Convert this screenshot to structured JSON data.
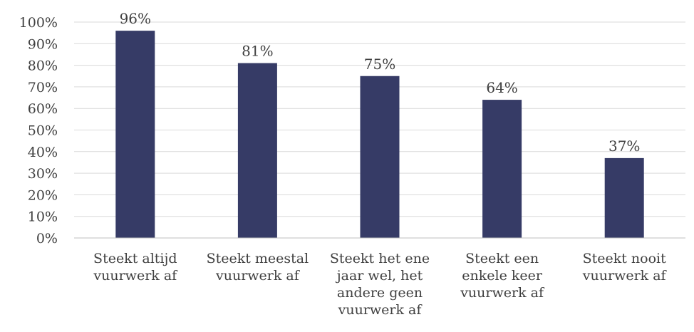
{
  "chart_data": {
    "type": "bar",
    "title": "",
    "xlabel": "",
    "ylabel": "",
    "ylim": [
      0,
      100
    ],
    "yticks": [
      "0%",
      "10%",
      "20%",
      "30%",
      "40%",
      "50%",
      "60%",
      "70%",
      "80%",
      "90%",
      "100%"
    ],
    "grid": true,
    "legend": "none",
    "bar_color": "#363b66",
    "categories": [
      [
        "Steekt altijd",
        "vuurwerk af"
      ],
      [
        "Steekt meestal",
        "vuurwerk af"
      ],
      [
        "Steekt het ene",
        "jaar wel, het",
        "andere geen",
        "vuurwerk af"
      ],
      [
        "Steekt een",
        "enkele keer",
        "vuurwerk af"
      ],
      [
        "Steekt nooit",
        "vuurwerk af"
      ]
    ],
    "values": [
      96,
      81,
      75,
      64,
      37
    ],
    "data_labels": [
      "96%",
      "81%",
      "75%",
      "64%",
      "37%"
    ]
  }
}
